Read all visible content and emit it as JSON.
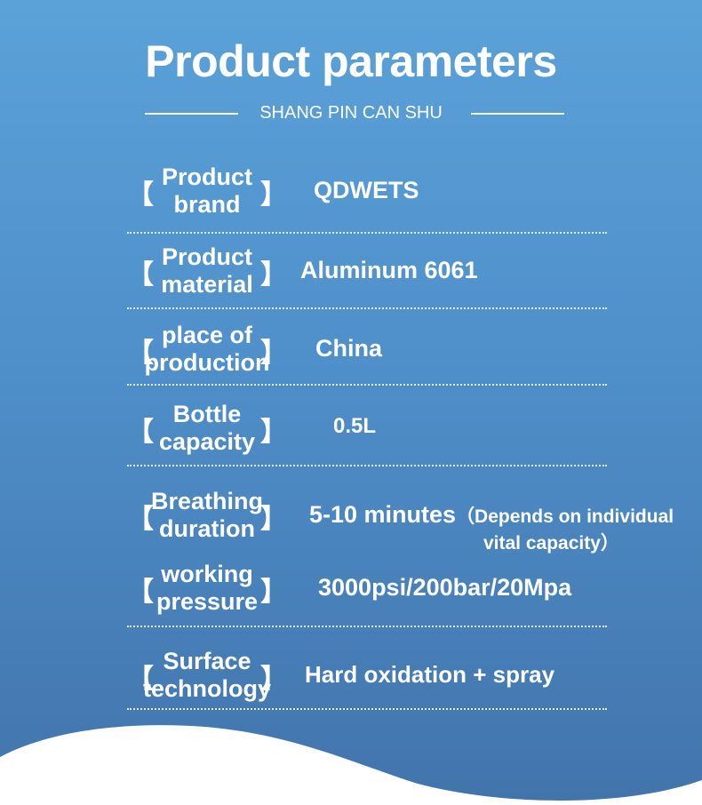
{
  "title": "Product parameters",
  "subtitle": "SHANG PIN CAN SHU",
  "bracket_left": "【",
  "bracket_right": "】",
  "rows": [
    {
      "label": "Product brand",
      "value": "QDWETS"
    },
    {
      "label": "Product material",
      "value": "Aluminum 6061"
    },
    {
      "label": "place of production",
      "value": "China"
    },
    {
      "label": "Bottle capacity",
      "value": "0.5L"
    },
    {
      "label": "Breathing duration",
      "value": "5-10 minutes",
      "note": "（Depends on individual",
      "note2": "vital capacity）"
    },
    {
      "label": "working pressure",
      "value": "3000psi/200bar/20Mpa"
    },
    {
      "label": "Surface technology",
      "value": "Hard oxidation + spray"
    }
  ],
  "colors": {
    "top": "#5ba2d9",
    "bottom": "#4274ab",
    "wave": "#ffffff"
  }
}
